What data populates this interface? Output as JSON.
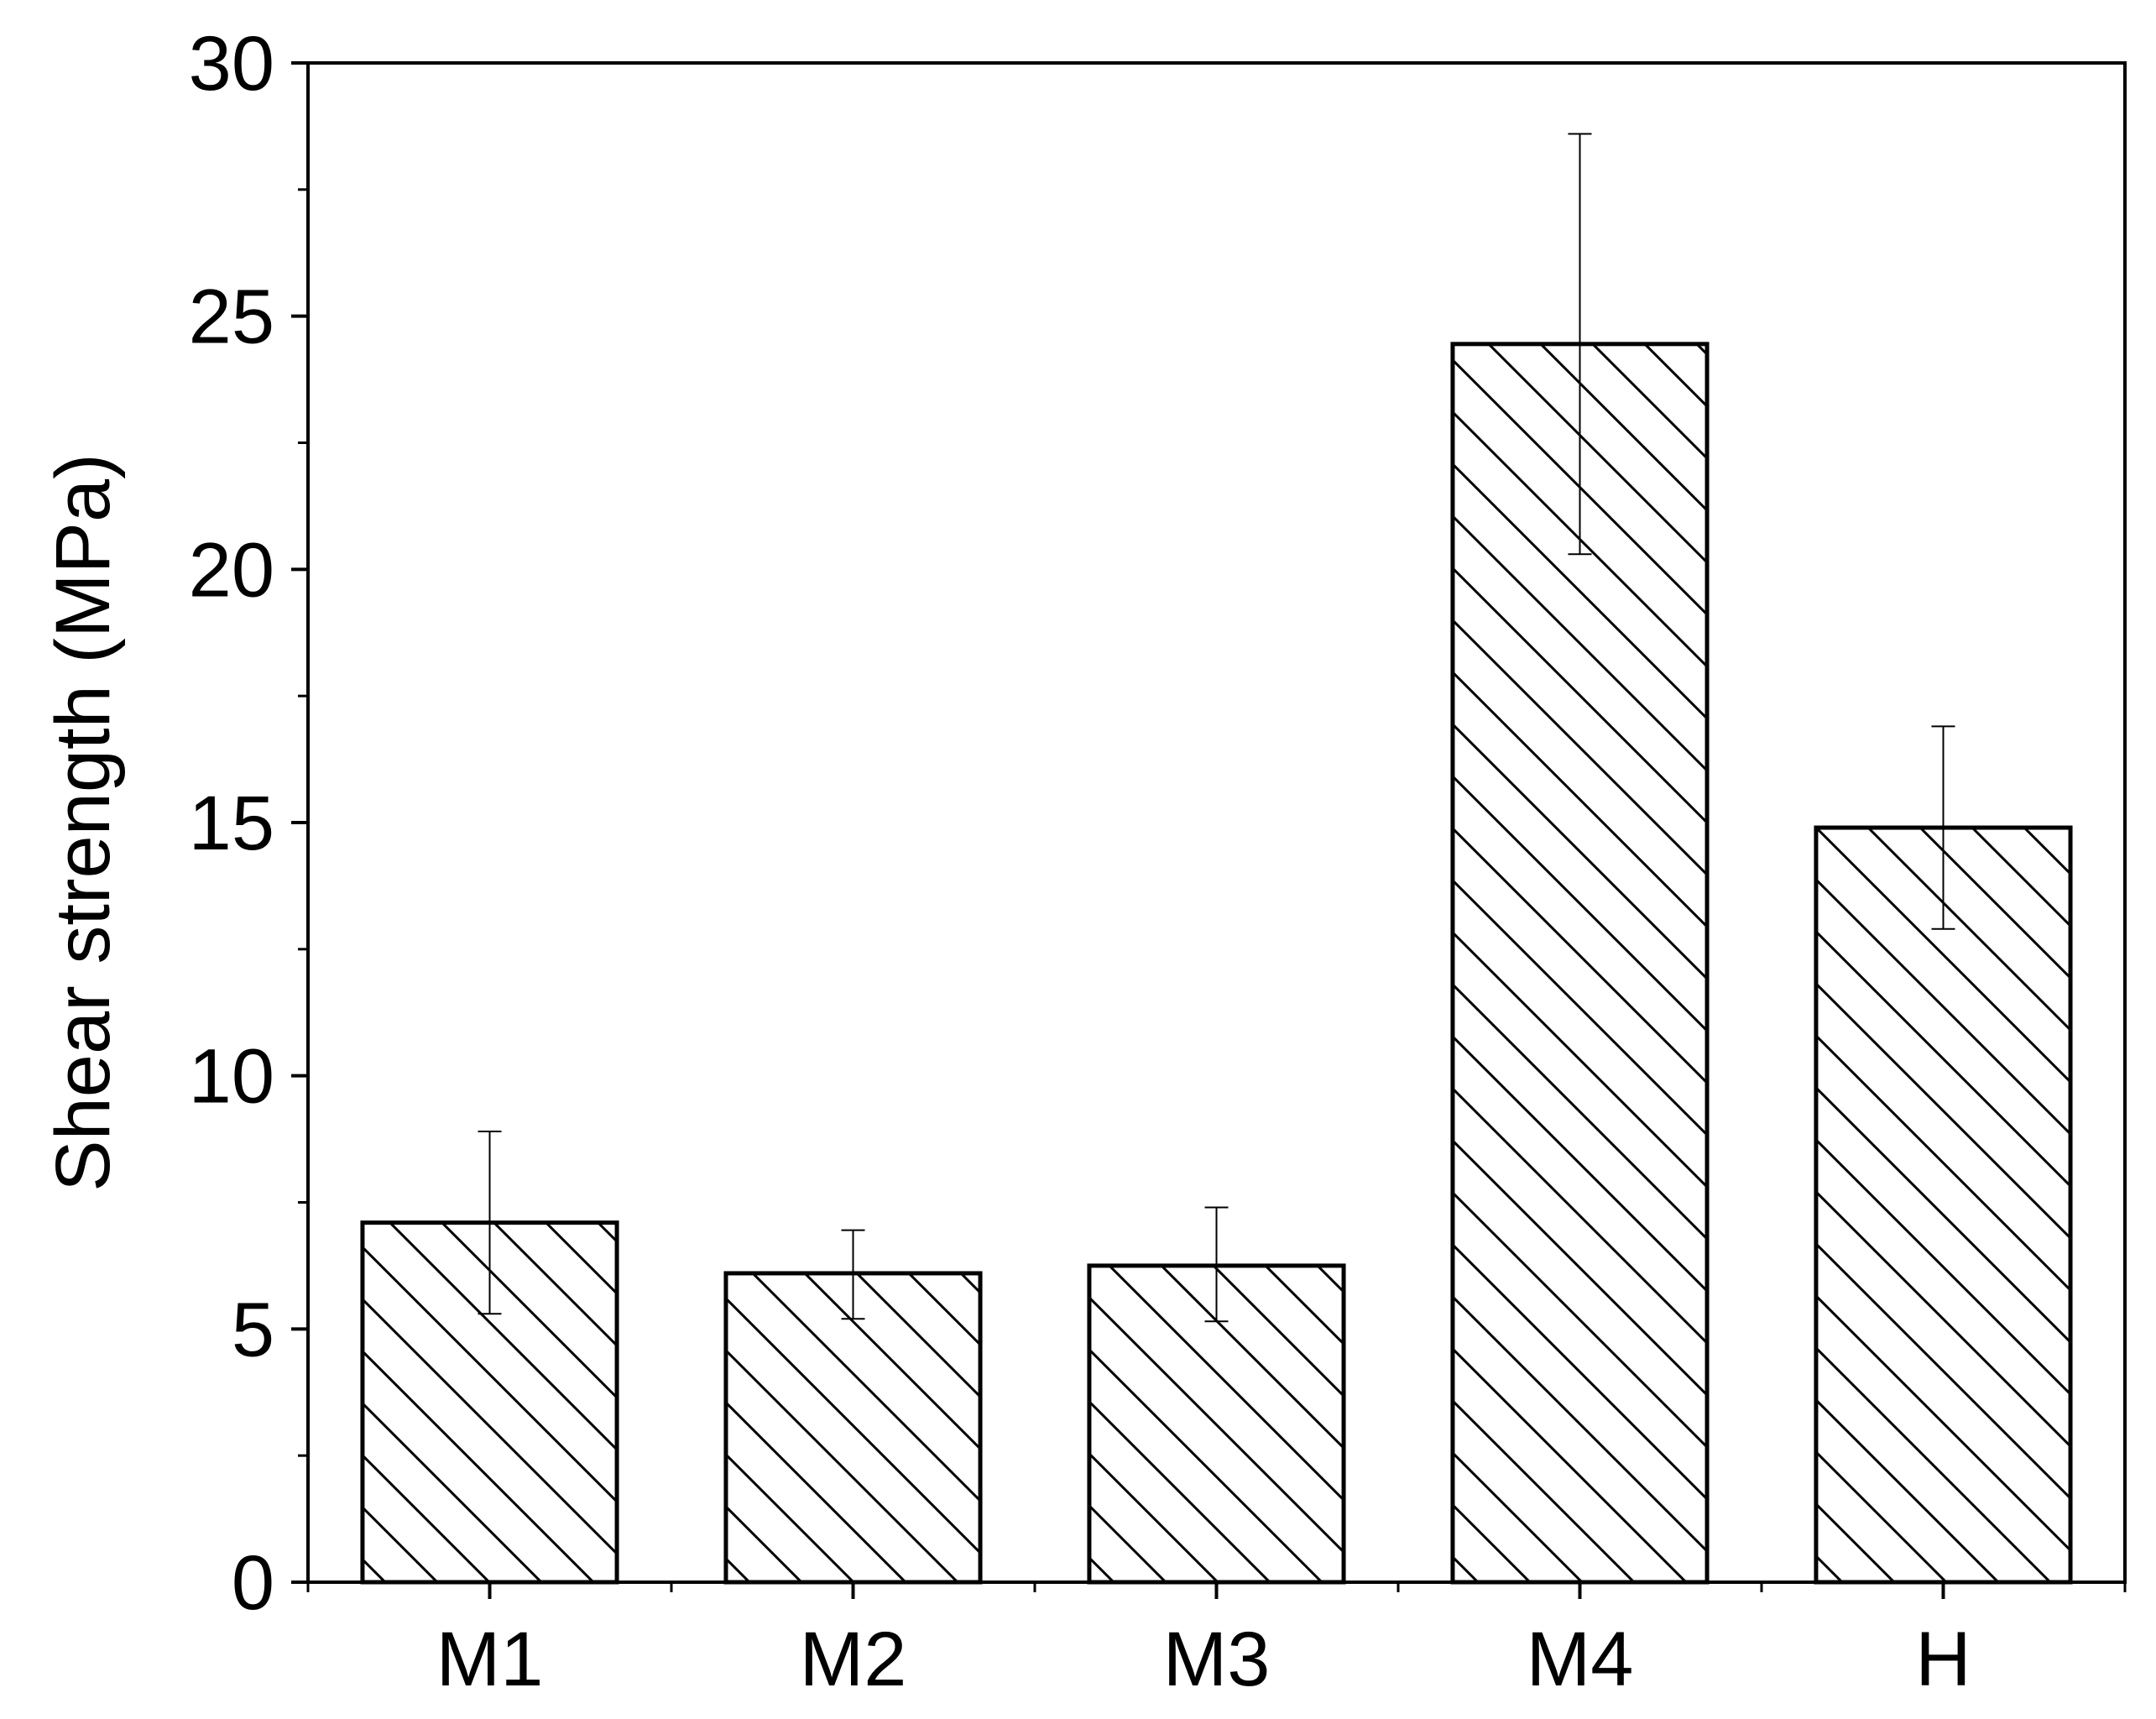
{
  "chart_data": {
    "type": "bar",
    "categories": [
      "M1",
      "M2",
      "M3",
      "M4",
      "H"
    ],
    "values": [
      7.1,
      6.1,
      6.25,
      24.45,
      14.9
    ],
    "error_upper": [
      8.9,
      6.95,
      7.4,
      28.6,
      16.9
    ],
    "error_lower": [
      5.3,
      5.2,
      5.15,
      20.3,
      12.9
    ],
    "title": "",
    "xlabel": "",
    "ylabel": "Shear strength (MPa)",
    "ylim": [
      0,
      30
    ],
    "yticks": [
      0,
      5,
      10,
      15,
      20,
      25,
      30
    ],
    "ytick_labels": [
      "0",
      "5",
      "10",
      "15",
      "20",
      "25",
      "30"
    ],
    "grid": false,
    "legend": "none",
    "bar_fill": "hatched diagonal lines",
    "colors": {
      "bar_stroke": "#000000",
      "hatch": "#000000",
      "background": "#ffffff",
      "axis": "#000000"
    }
  }
}
